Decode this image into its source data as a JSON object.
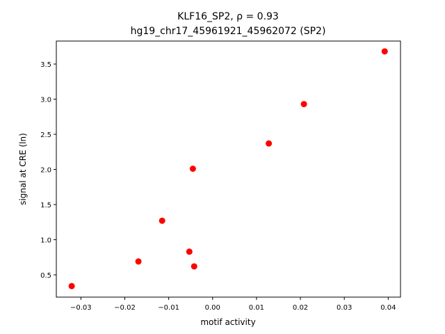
{
  "chart_data": {
    "type": "scatter",
    "title": [
      "KLF16_SP2, ρ = 0.93",
      "hg19_chr17_45961921_45962072 (SP2)"
    ],
    "xlabel": "motif activity",
    "ylabel": "signal at CRE (ln)",
    "x": [
      0.0392,
      0.0208,
      0.0128,
      -0.0045,
      -0.0115,
      -0.0053,
      -0.0169,
      -0.0042,
      -0.0321
    ],
    "values": [
      3.68,
      2.93,
      2.37,
      2.01,
      1.27,
      0.83,
      0.69,
      0.62,
      0.34
    ],
    "color": "#ff0000",
    "xlim": [
      -0.0356,
      0.0428
    ],
    "ylim": [
      0.183,
      3.827
    ],
    "xticks": [
      {
        "value": -0.03,
        "label": "−0.03"
      },
      {
        "value": -0.02,
        "label": "−0.02"
      },
      {
        "value": -0.01,
        "label": "−0.01"
      },
      {
        "value": 0,
        "label": "0.00"
      },
      0.01,
      0.02,
      0.03,
      0.04
    ],
    "yticks": [
      0.5,
      {
        "value": 1,
        "label": "1.0"
      },
      1.5,
      {
        "value": 2,
        "label": "2.0"
      },
      2.5,
      {
        "value": 3,
        "label": "3.0"
      },
      3.5
    ]
  }
}
